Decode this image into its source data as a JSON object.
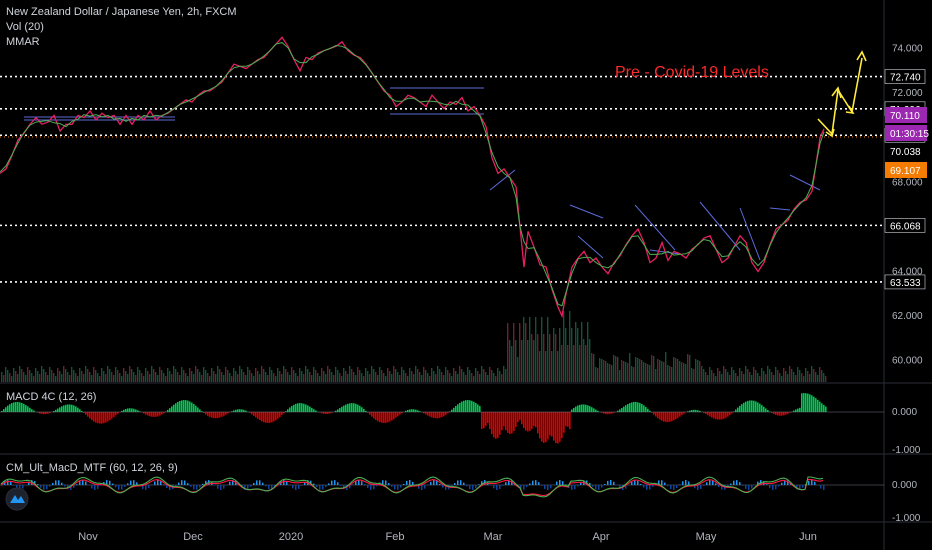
{
  "header": {
    "symbol_line": "New Zealand Dollar / Japanese Yen, 2h, FXCM",
    "vol_label": "Vol (20)",
    "mmar_label": "MMAR"
  },
  "annotation": {
    "text": "Pre - Covid-19 Levels",
    "color": "#ff2a2a"
  },
  "panels": {
    "macd_label": "MACD 4C (12, 26)",
    "cm_label": "CM_Ult_MacD_MTF (60, 12, 26, 9)"
  },
  "chart_data": {
    "type": "line",
    "title": "New Zealand Dollar / Japanese Yen, 2h, FXCM",
    "x_ticks": [
      "Nov",
      "Dec",
      "2020",
      "Feb",
      "Mar",
      "Apr",
      "May",
      "Jun"
    ],
    "y_ticks": [
      "74.000",
      "72.000",
      "70.000",
      "68.000",
      "66.000",
      "64.000",
      "62.000",
      "60.000"
    ],
    "ylim": [
      58.5,
      74.8
    ],
    "series": [
      {
        "values": [
          [
            0,
            68.4
          ],
          [
            6,
            68.6
          ],
          [
            12,
            69.2
          ],
          [
            18,
            69.9
          ],
          [
            24,
            70.2
          ],
          [
            30,
            70.6
          ],
          [
            36,
            70.9
          ],
          [
            42,
            70.6
          ],
          [
            48,
            70.7
          ],
          [
            54,
            71.0
          ],
          [
            60,
            70.3
          ],
          [
            66,
            70.6
          ],
          [
            72,
            70.6
          ],
          [
            78,
            71.0
          ],
          [
            84,
            70.9
          ],
          [
            90,
            71.2
          ],
          [
            96,
            70.8
          ],
          [
            102,
            71.1
          ],
          [
            108,
            70.9
          ],
          [
            114,
            71.0
          ],
          [
            120,
            70.6
          ],
          [
            126,
            71.0
          ],
          [
            132,
            70.6
          ],
          [
            138,
            71.0
          ],
          [
            144,
            70.8
          ],
          [
            150,
            71.2
          ],
          [
            156,
            70.8
          ],
          [
            162,
            71.0
          ],
          [
            168,
            71.1
          ],
          [
            174,
            71.3
          ],
          [
            180,
            71.5
          ],
          [
            186,
            71.7
          ],
          [
            192,
            71.6
          ],
          [
            198,
            71.9
          ],
          [
            204,
            72.1
          ],
          [
            210,
            72.1
          ],
          [
            216,
            72.3
          ],
          [
            222,
            72.5
          ],
          [
            228,
            72.9
          ],
          [
            234,
            73.3
          ],
          [
            240,
            73.2
          ],
          [
            246,
            73.1
          ],
          [
            252,
            73.3
          ],
          [
            258,
            73.5
          ],
          [
            264,
            73.6
          ],
          [
            270,
            73.9
          ],
          [
            276,
            74.2
          ],
          [
            282,
            74.5
          ],
          [
            288,
            74.1
          ],
          [
            294,
            73.5
          ],
          [
            300,
            73.0
          ],
          [
            306,
            73.6
          ],
          [
            312,
            73.5
          ],
          [
            318,
            73.8
          ],
          [
            324,
            73.9
          ],
          [
            330,
            74.0
          ],
          [
            336,
            74.1
          ],
          [
            342,
            74.3
          ],
          [
            348,
            73.9
          ],
          [
            354,
            73.7
          ],
          [
            360,
            73.6
          ],
          [
            366,
            73.3
          ],
          [
            372,
            72.9
          ],
          [
            378,
            72.5
          ],
          [
            384,
            72.1
          ],
          [
            390,
            71.9
          ],
          [
            396,
            71.4
          ],
          [
            402,
            71.6
          ],
          [
            408,
            71.9
          ],
          [
            414,
            71.8
          ],
          [
            420,
            71.6
          ],
          [
            426,
            71.4
          ],
          [
            432,
            71.9
          ],
          [
            438,
            71.6
          ],
          [
            444,
            71.3
          ],
          [
            450,
            71.6
          ],
          [
            456,
            71.5
          ],
          [
            462,
            71.8
          ],
          [
            468,
            71.2
          ],
          [
            474,
            71.4
          ],
          [
            480,
            71.0
          ],
          [
            486,
            70.5
          ],
          [
            492,
            69.1
          ],
          [
            498,
            68.4
          ],
          [
            504,
            68.6
          ],
          [
            510,
            68.2
          ],
          [
            516,
            67.8
          ],
          [
            520,
            66.0
          ],
          [
            524,
            64.2
          ],
          [
            528,
            65.8
          ],
          [
            534,
            65.1
          ],
          [
            540,
            64.3
          ],
          [
            546,
            64.2
          ],
          [
            552,
            63.2
          ],
          [
            558,
            62.4
          ],
          [
            562,
            62.0
          ],
          [
            566,
            63.0
          ],
          [
            572,
            64.2
          ],
          [
            578,
            64.6
          ],
          [
            584,
            64.9
          ],
          [
            590,
            64.4
          ],
          [
            596,
            64.6
          ],
          [
            602,
            64.2
          ],
          [
            608,
            63.9
          ],
          [
            614,
            64.4
          ],
          [
            620,
            64.7
          ],
          [
            626,
            65.2
          ],
          [
            632,
            65.6
          ],
          [
            638,
            65.9
          ],
          [
            644,
            65.3
          ],
          [
            650,
            64.4
          ],
          [
            656,
            64.6
          ],
          [
            662,
            65.3
          ],
          [
            668,
            64.5
          ],
          [
            674,
            64.9
          ],
          [
            680,
            64.8
          ],
          [
            686,
            64.6
          ],
          [
            692,
            65.0
          ],
          [
            698,
            65.2
          ],
          [
            704,
            65.5
          ],
          [
            710,
            65.6
          ],
          [
            716,
            65.0
          ],
          [
            722,
            64.4
          ],
          [
            728,
            64.6
          ],
          [
            734,
            65.1
          ],
          [
            740,
            65.6
          ],
          [
            746,
            65.3
          ],
          [
            752,
            64.4
          ],
          [
            758,
            64.0
          ],
          [
            764,
            64.4
          ],
          [
            770,
            65.2
          ],
          [
            776,
            65.9
          ],
          [
            782,
            66.1
          ],
          [
            788,
            66.3
          ],
          [
            794,
            66.8
          ],
          [
            800,
            67.1
          ],
          [
            806,
            67.2
          ],
          [
            812,
            67.6
          ],
          [
            816,
            68.8
          ],
          [
            820,
            70.0
          ],
          [
            824,
            70.4
          ]
        ]
      }
    ],
    "levels": [
      {
        "value": 72.74,
        "label": "72.740"
      },
      {
        "value": 71.296,
        "label": "71.296"
      },
      {
        "value": 70.11,
        "label": "70.110"
      },
      {
        "value": 66.068,
        "label": "66.068"
      },
      {
        "value": 63.533,
        "label": "63.533"
      }
    ],
    "price_tags": [
      {
        "label": "70.110",
        "color": "#9c27b0"
      },
      {
        "label": "01:30:15",
        "color": "#9c27b0"
      },
      {
        "label": "70.038",
        "color": "#000000"
      },
      {
        "label": "69.107",
        "color": "#f57c00"
      }
    ],
    "macd_ticks": [
      "0.000",
      "-1.000"
    ],
    "cm_ticks": [
      "0.000",
      "-1.000"
    ]
  }
}
